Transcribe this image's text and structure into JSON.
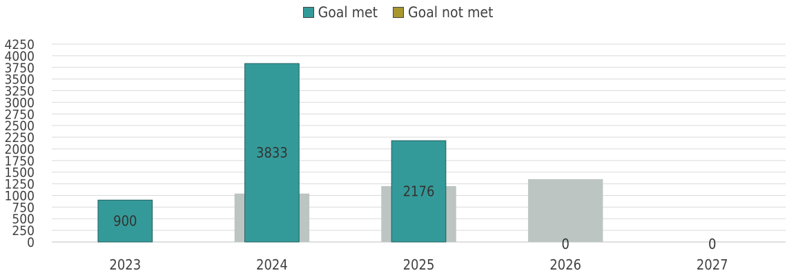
{
  "chart_data": {
    "type": "bar",
    "categories": [
      "2023",
      "2024",
      "2025",
      "2026",
      "2027"
    ],
    "background_series": {
      "values": [
        0,
        1040,
        1200,
        1350,
        0
      ],
      "color": "#bcc5c2"
    },
    "series": [
      {
        "name": "Goal met",
        "values": [
          900,
          3833,
          2176,
          0,
          0
        ],
        "color": "#349a99",
        "labels": [
          "900",
          "3833",
          "2176",
          "0",
          "0"
        ]
      },
      {
        "name": "Goal not met",
        "values": [
          0,
          0,
          0,
          0,
          0
        ],
        "color": "#a8962f"
      }
    ],
    "y_ticks": [
      "0",
      "250",
      "500",
      "750",
      "1000",
      "1250",
      "1500",
      "1750",
      "2000",
      "2250",
      "2500",
      "2750",
      "3000",
      "3250",
      "3500",
      "3750",
      "4000",
      "4250"
    ],
    "ylim": [
      0,
      4250
    ],
    "grid": true,
    "legend_position": "top-center",
    "title": "",
    "xlabel": "",
    "ylabel": ""
  }
}
